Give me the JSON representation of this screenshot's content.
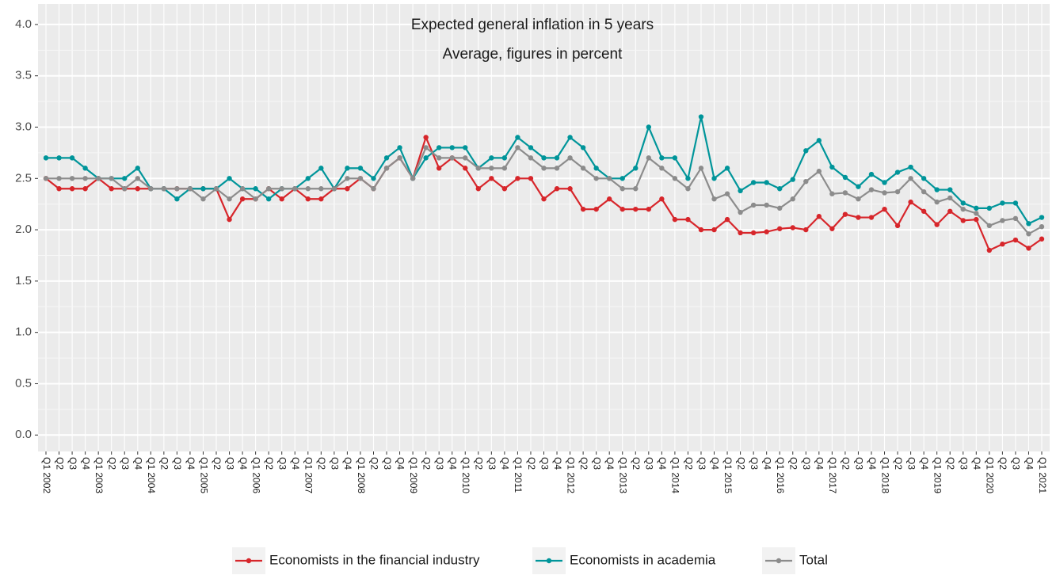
{
  "chart_data": {
    "type": "line",
    "title": "Expected general inflation in 5 years",
    "subtitle": "Average, figures in percent",
    "categories": [
      "Q1 2002",
      "Q2",
      "Q3",
      "Q4",
      "Q1 2003",
      "Q2",
      "Q3",
      "Q4",
      "Q1 2004",
      "Q2",
      "Q3",
      "Q4",
      "Q1 2005",
      "Q2",
      "Q3",
      "Q4",
      "Q1 2006",
      "Q2",
      "Q3",
      "Q4",
      "Q1 2007",
      "Q2",
      "Q3",
      "Q4",
      "Q1 2008",
      "Q2",
      "Q3",
      "Q4",
      "Q1 2009",
      "Q2",
      "Q3",
      "Q4",
      "Q1 2010",
      "Q2",
      "Q3",
      "Q4",
      "Q1 2011",
      "Q2",
      "Q3",
      "Q4",
      "Q1 2012",
      "Q2",
      "Q3",
      "Q4",
      "Q1 2013",
      "Q2",
      "Q3",
      "Q4",
      "Q1 2014",
      "Q2",
      "Q3",
      "Q4",
      "Q1 2015",
      "Q2",
      "Q3",
      "Q4",
      "Q1 2016",
      "Q2",
      "Q3",
      "Q4",
      "Q1 2017",
      "Q2",
      "Q3",
      "Q4",
      "Q1 2018",
      "Q2",
      "Q3",
      "Q4",
      "Q1 2019",
      "Q2",
      "Q3",
      "Q4",
      "Q1 2020",
      "Q2",
      "Q3",
      "Q4",
      "Q1 2021"
    ],
    "series": [
      {
        "name": "Economists in the financial industry",
        "color": "#d7262b",
        "values": [
          2.5,
          2.4,
          2.4,
          2.4,
          2.5,
          2.4,
          2.4,
          2.4,
          2.4,
          2.4,
          2.4,
          2.4,
          2.4,
          2.4,
          2.1,
          2.3,
          2.3,
          2.4,
          2.3,
          2.4,
          2.3,
          2.3,
          2.4,
          2.4,
          2.5,
          2.4,
          2.6,
          2.7,
          2.5,
          2.9,
          2.6,
          2.7,
          2.6,
          2.4,
          2.5,
          2.4,
          2.5,
          2.5,
          2.3,
          2.4,
          2.4,
          2.2,
          2.2,
          2.3,
          2.2,
          2.2,
          2.2,
          2.3,
          2.1,
          2.1,
          2.0,
          2.0,
          2.1,
          1.97,
          1.97,
          1.98,
          2.01,
          2.02,
          2.0,
          2.13,
          2.01,
          2.15,
          2.12,
          2.12,
          2.2,
          2.04,
          2.27,
          2.18,
          2.05,
          2.18,
          2.09,
          2.1,
          1.8,
          1.86,
          1.9,
          1.82,
          1.91
        ]
      },
      {
        "name": "Economists in academia",
        "color": "#00959a",
        "values": [
          2.7,
          2.7,
          2.7,
          2.6,
          2.5,
          2.5,
          2.5,
          2.6,
          2.4,
          2.4,
          2.3,
          2.4,
          2.4,
          2.4,
          2.5,
          2.4,
          2.4,
          2.3,
          2.4,
          2.4,
          2.5,
          2.6,
          2.4,
          2.6,
          2.6,
          2.5,
          2.7,
          2.8,
          2.5,
          2.7,
          2.8,
          2.8,
          2.8,
          2.6,
          2.7,
          2.7,
          2.9,
          2.8,
          2.7,
          2.7,
          2.9,
          2.8,
          2.6,
          2.5,
          2.5,
          2.6,
          3.0,
          2.7,
          2.7,
          2.5,
          3.1,
          2.5,
          2.6,
          2.38,
          2.46,
          2.46,
          2.4,
          2.49,
          2.77,
          2.87,
          2.61,
          2.51,
          2.42,
          2.54,
          2.46,
          2.56,
          2.61,
          2.5,
          2.39,
          2.39,
          2.26,
          2.21,
          2.21,
          2.26,
          2.26,
          2.06,
          2.12
        ]
      },
      {
        "name": "Total",
        "color": "#8c8c8c",
        "values": [
          2.5,
          2.5,
          2.5,
          2.5,
          2.5,
          2.5,
          2.4,
          2.5,
          2.4,
          2.4,
          2.4,
          2.4,
          2.3,
          2.4,
          2.3,
          2.4,
          2.3,
          2.4,
          2.4,
          2.4,
          2.4,
          2.4,
          2.4,
          2.5,
          2.5,
          2.4,
          2.6,
          2.7,
          2.5,
          2.8,
          2.7,
          2.7,
          2.7,
          2.6,
          2.6,
          2.6,
          2.8,
          2.7,
          2.6,
          2.6,
          2.7,
          2.6,
          2.5,
          2.5,
          2.4,
          2.4,
          2.7,
          2.6,
          2.5,
          2.4,
          2.6,
          2.3,
          2.35,
          2.17,
          2.24,
          2.24,
          2.21,
          2.3,
          2.47,
          2.57,
          2.35,
          2.36,
          2.3,
          2.39,
          2.36,
          2.37,
          2.5,
          2.37,
          2.27,
          2.31,
          2.2,
          2.16,
          2.04,
          2.09,
          2.11,
          1.96,
          2.03
        ]
      }
    ],
    "ylim": [
      -0.16,
      4.2
    ],
    "yticks": [
      {
        "value": 0,
        "label": "0.0"
      },
      0.5,
      {
        "value": 1,
        "label": "1.0"
      },
      1.5,
      {
        "value": 2,
        "label": "2.0"
      },
      2.5,
      {
        "value": 3,
        "label": "3.0"
      },
      3.5,
      {
        "value": 4,
        "label": "4.0"
      }
    ],
    "grid": true
  }
}
